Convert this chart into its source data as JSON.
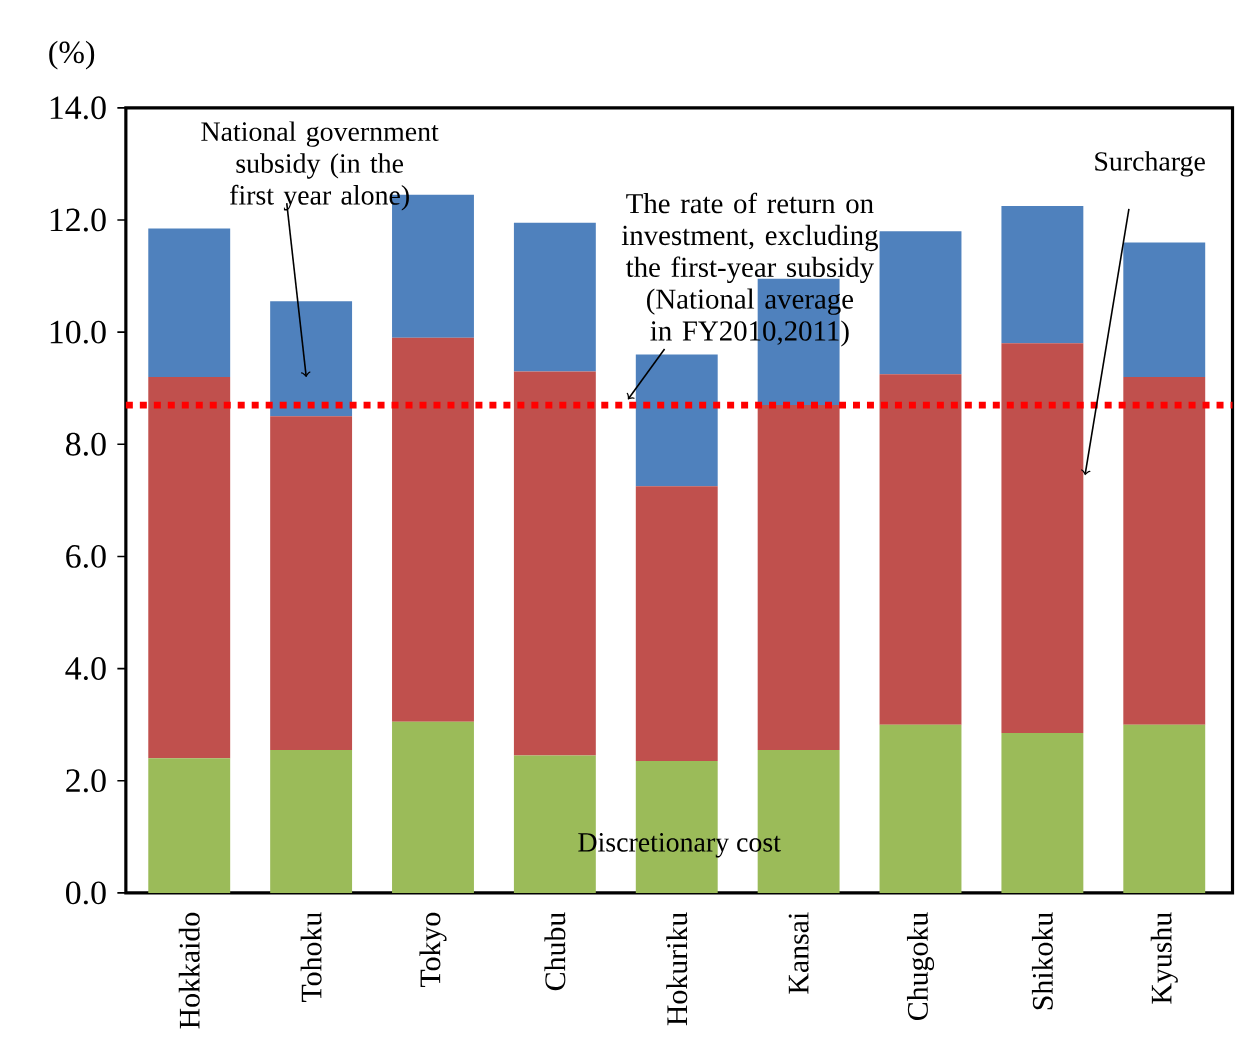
{
  "chart_data": {
    "type": "bar",
    "ylabel": "(%)",
    "stacked": true,
    "categories": [
      "Hokkaido",
      "Tohoku",
      "Tokyo",
      "Chubu",
      "Hokuriku",
      "Kansai",
      "Chugoku",
      "Shikoku",
      "Kyushu"
    ],
    "series": [
      {
        "name": "Discretionary cost",
        "color": "#9bbb59",
        "values": [
          2.4,
          2.55,
          3.05,
          2.45,
          2.35,
          2.55,
          3.0,
          2.85,
          3.0
        ]
      },
      {
        "name": "Surcharge",
        "color": "#c0504d",
        "values": [
          6.8,
          5.95,
          6.85,
          6.85,
          4.9,
          6.15,
          6.25,
          6.95,
          6.2
        ]
      },
      {
        "name": "National government subsidy (in the first year alone)",
        "color": "#4f81bd",
        "values": [
          2.65,
          2.05,
          2.55,
          2.65,
          2.35,
          2.25,
          2.55,
          2.45,
          2.4
        ]
      }
    ],
    "ylim": [
      0,
      14
    ],
    "yticks": [
      {
        "value": 0,
        "label": "0.0"
      },
      {
        "value": 2,
        "label": "2.0"
      },
      {
        "value": 4,
        "label": "4.0"
      },
      {
        "value": 6,
        "label": "6.0"
      },
      {
        "value": 8,
        "label": "8.0"
      },
      {
        "value": 10,
        "label": "10.0"
      },
      {
        "value": 12,
        "label": "12.0"
      },
      {
        "value": 14,
        "label": "14.0"
      }
    ],
    "ref_lines": [
      {
        "axis": "y",
        "value": 8.7,
        "label": "The rate of return on investment, excluding the first-year subsidy (National average in FY2010,2011)",
        "color": "#ff0000",
        "line_style": "dotted"
      }
    ]
  }
}
